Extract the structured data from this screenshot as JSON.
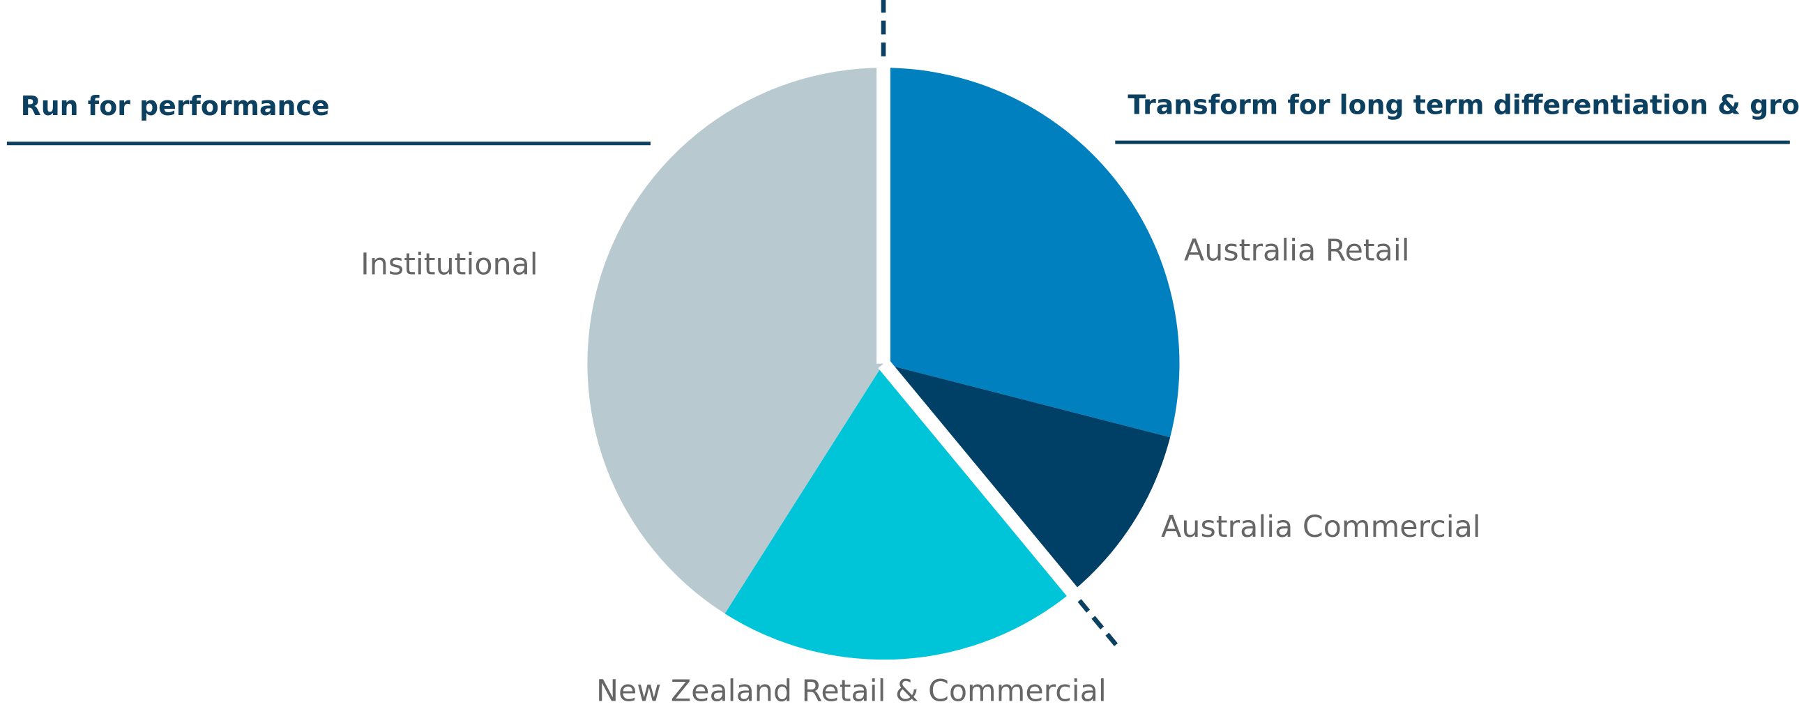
{
  "chart_data": {
    "type": "pie",
    "categories": [
      "Australia Retail",
      "Australia Commercial",
      "New Zealand Retail & Commercial",
      "Institutional"
    ],
    "values": [
      29,
      10,
      20,
      41
    ],
    "colors": [
      "#0080bf",
      "#003f66",
      "#00c4d8",
      "#b8c9d0"
    ],
    "annotations": [
      "Run for performance",
      "Transform for long term differentiation & growth"
    ]
  }
}
